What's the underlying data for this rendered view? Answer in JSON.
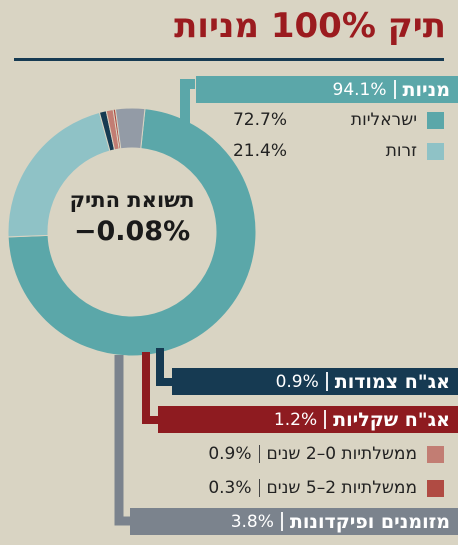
{
  "title": "תיק 100% מניות",
  "center": {
    "label": "תשואת התיק",
    "value": "−0.08%"
  },
  "chart_data": {
    "type": "pie",
    "donut": true,
    "title": "תיק 100% מניות",
    "segments": [
      {
        "name": "ישראליות",
        "value": 72.7,
        "color": "#5ba7a9"
      },
      {
        "name": "זרות",
        "value": 21.4,
        "color": "#8fc2c6"
      },
      {
        "name": "אג\"ח צמודות",
        "value": 0.9,
        "color": "#163a52"
      },
      {
        "name": "ממשלתיות 0–2 שנים",
        "value": 0.9,
        "color": "#c27d73"
      },
      {
        "name": "ממשלתיות 2–5 שנים",
        "value": 0.3,
        "color": "#b04b43"
      },
      {
        "name": "מזומנים ופיקדונות",
        "value": 3.8,
        "color": "#939ba6"
      }
    ],
    "groups": [
      {
        "name": "מניות",
        "value": 94.1
      },
      {
        "name": "אג\"ח צמודות",
        "value": 0.9
      },
      {
        "name": "אג\"ח שקליות",
        "value": 1.2
      },
      {
        "name": "מזומנים ופיקדונות",
        "value": 3.8
      }
    ]
  },
  "legend": {
    "stocks": {
      "name": "מניות",
      "value": "94.1%",
      "color": "#5ba7a9"
    },
    "israeli": {
      "name": "ישראליות",
      "value": "72.7%",
      "color": "#5ba7a9"
    },
    "foreign": {
      "name": "זרות",
      "value": "21.4%",
      "color": "#8fc2c6"
    },
    "linked": {
      "name": "אג\"ח צמודות",
      "value": "0.9%",
      "color": "#163a52"
    },
    "shekel": {
      "name": "אג\"ח שקליות",
      "value": "1.2%",
      "color": "#8e1b20"
    },
    "gov02": {
      "name": "ממשלתיות 0–2 שנים",
      "value": "0.9%",
      "color": "#c27d73"
    },
    "gov25": {
      "name": "ממשלתיות 2–5 שנים",
      "value": "0.3%",
      "color": "#b04b43"
    },
    "cash": {
      "name": "מזומנים ופיקדונות",
      "value": "3.8%",
      "color": "#7b838d"
    }
  }
}
